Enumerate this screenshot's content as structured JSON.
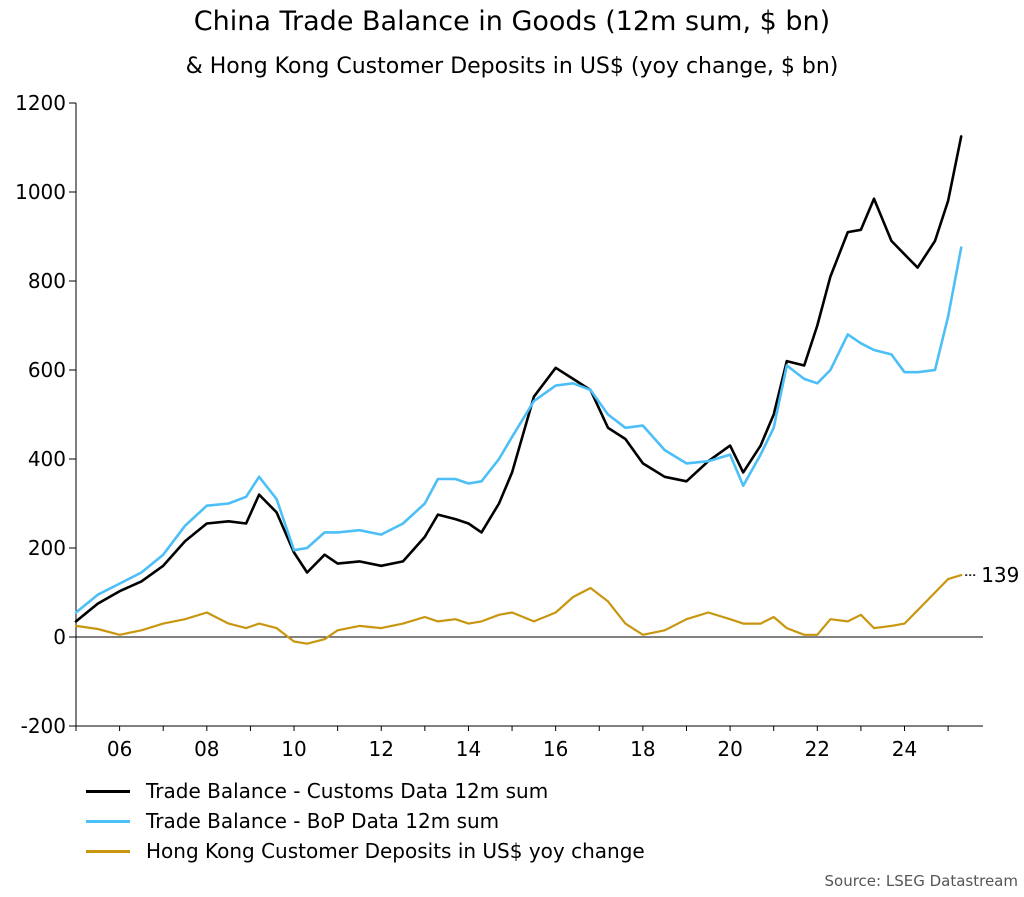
{
  "title": "China Trade Balance in Goods (12m sum, $ bn)",
  "subtitle": "& Hong Kong Customer Deposits in US$ (yoy change, $ bn)",
  "source": "Source: LSEG Datastream",
  "chart_data": {
    "type": "line",
    "title": "China Trade Balance in Goods (12m sum, $ bn)",
    "subtitle": "& Hong Kong Customer Deposits in US$ (yoy change, $ bn)",
    "xlabel": "",
    "ylabel": "",
    "xlim": [
      2005,
      2025.8
    ],
    "ylim": [
      -200,
      1200
    ],
    "xticks": [
      2006,
      2008,
      2010,
      2012,
      2014,
      2016,
      2018,
      2020,
      2022,
      2024
    ],
    "xtick_labels": [
      "06",
      "08",
      "10",
      "12",
      "14",
      "16",
      "18",
      "20",
      "22",
      "24"
    ],
    "yticks": [
      -200,
      0,
      200,
      400,
      600,
      800,
      1000,
      1200
    ],
    "ytick_labels": [
      "-200",
      "0",
      "200",
      "400",
      "600",
      "800",
      "1000",
      "1200"
    ],
    "zero_line": true,
    "legend_position": "bottom-left",
    "end_label": {
      "series": 2,
      "value": 139,
      "text": "139"
    },
    "series": [
      {
        "name": "Trade Balance - Customs Data 12m sum",
        "color": "#000000",
        "x": [
          2005.0,
          2005.5,
          2006.0,
          2006.5,
          2007.0,
          2007.5,
          2008.0,
          2008.5,
          2008.9,
          2009.2,
          2009.6,
          2010.0,
          2010.3,
          2010.7,
          2011.0,
          2011.5,
          2012.0,
          2012.5,
          2013.0,
          2013.3,
          2013.7,
          2014.0,
          2014.3,
          2014.7,
          2015.0,
          2015.5,
          2016.0,
          2016.4,
          2016.8,
          2017.2,
          2017.6,
          2018.0,
          2018.5,
          2019.0,
          2019.5,
          2020.0,
          2020.3,
          2020.7,
          2021.0,
          2021.3,
          2021.7,
          2022.0,
          2022.3,
          2022.7,
          2023.0,
          2023.3,
          2023.7,
          2024.0,
          2024.3,
          2024.7,
          2025.0,
          2025.3
        ],
        "y": [
          35,
          75,
          103,
          125,
          160,
          215,
          255,
          260,
          255,
          320,
          280,
          190,
          145,
          185,
          165,
          170,
          160,
          170,
          225,
          275,
          265,
          255,
          235,
          300,
          370,
          540,
          605,
          580,
          555,
          470,
          445,
          390,
          360,
          350,
          395,
          430,
          370,
          430,
          500,
          620,
          610,
          700,
          810,
          910,
          915,
          985,
          890,
          860,
          830,
          890,
          980,
          1125
        ]
      },
      {
        "name": "Trade Balance - BoP Data 12m sum",
        "color": "#4dbff7",
        "x": [
          2005.0,
          2005.5,
          2006.0,
          2006.5,
          2007.0,
          2007.5,
          2008.0,
          2008.5,
          2008.9,
          2009.2,
          2009.6,
          2010.0,
          2010.3,
          2010.7,
          2011.0,
          2011.5,
          2012.0,
          2012.5,
          2013.0,
          2013.3,
          2013.7,
          2014.0,
          2014.3,
          2014.7,
          2015.0,
          2015.5,
          2016.0,
          2016.4,
          2016.8,
          2017.2,
          2017.6,
          2018.0,
          2018.5,
          2019.0,
          2019.5,
          2020.0,
          2020.3,
          2020.7,
          2021.0,
          2021.3,
          2021.7,
          2022.0,
          2022.3,
          2022.7,
          2023.0,
          2023.3,
          2023.7,
          2024.0,
          2024.3,
          2024.7,
          2025.0,
          2025.3
        ],
        "y": [
          55,
          95,
          120,
          145,
          185,
          250,
          295,
          300,
          315,
          360,
          310,
          195,
          200,
          235,
          235,
          240,
          230,
          255,
          300,
          355,
          355,
          345,
          350,
          400,
          450,
          530,
          565,
          570,
          555,
          500,
          470,
          475,
          420,
          390,
          395,
          410,
          340,
          410,
          470,
          610,
          580,
          570,
          600,
          680,
          660,
          645,
          635,
          595,
          595,
          600,
          720,
          875
        ]
      },
      {
        "name": "Hong Kong Customer Deposits in US$ yoy change",
        "color": "#c8960f",
        "x": [
          2005.0,
          2005.5,
          2006.0,
          2006.5,
          2007.0,
          2007.5,
          2008.0,
          2008.5,
          2008.9,
          2009.2,
          2009.6,
          2010.0,
          2010.3,
          2010.7,
          2011.0,
          2011.5,
          2012.0,
          2012.5,
          2013.0,
          2013.3,
          2013.7,
          2014.0,
          2014.3,
          2014.7,
          2015.0,
          2015.5,
          2016.0,
          2016.4,
          2016.8,
          2017.2,
          2017.6,
          2018.0,
          2018.5,
          2019.0,
          2019.5,
          2020.0,
          2020.3,
          2020.7,
          2021.0,
          2021.3,
          2021.7,
          2022.0,
          2022.3,
          2022.7,
          2023.0,
          2023.3,
          2023.7,
          2024.0,
          2024.3,
          2024.7,
          2025.0,
          2025.3
        ],
        "y": [
          25,
          18,
          5,
          15,
          30,
          40,
          55,
          30,
          20,
          30,
          20,
          -10,
          -15,
          -5,
          15,
          25,
          20,
          30,
          45,
          35,
          40,
          30,
          35,
          50,
          55,
          35,
          55,
          90,
          110,
          80,
          30,
          5,
          15,
          40,
          55,
          40,
          30,
          30,
          45,
          20,
          5,
          5,
          40,
          35,
          50,
          20,
          25,
          30,
          60,
          100,
          130,
          139
        ]
      }
    ]
  }
}
